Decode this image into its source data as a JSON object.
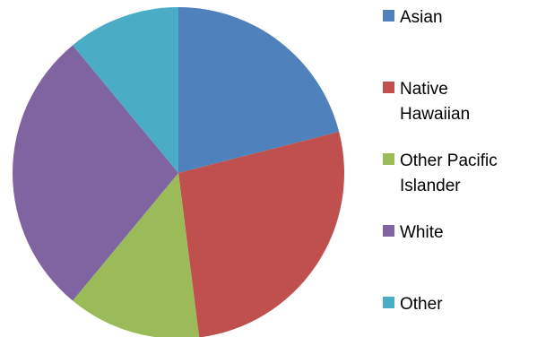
{
  "chart_data": {
    "type": "pie",
    "title": "",
    "start_angle_deg": 0,
    "direction": "clockwise",
    "slices": [
      {
        "label": "Asian",
        "value": 21,
        "color": "#4F81BD"
      },
      {
        "label": "Native Hawaiian",
        "value": 27,
        "color": "#C0504D"
      },
      {
        "label": "Other Pacific Islander",
        "value": 13,
        "color": "#9BBB59"
      },
      {
        "label": "White",
        "value": 28,
        "color": "#8064A2"
      },
      {
        "label": "Other",
        "value": 11,
        "color": "#4BACC6"
      }
    ],
    "legend": {
      "position": "right",
      "items": [
        "Asian",
        "Native\nHawaiian",
        "Other Pacific\nIslander",
        "White",
        "Other"
      ]
    }
  }
}
